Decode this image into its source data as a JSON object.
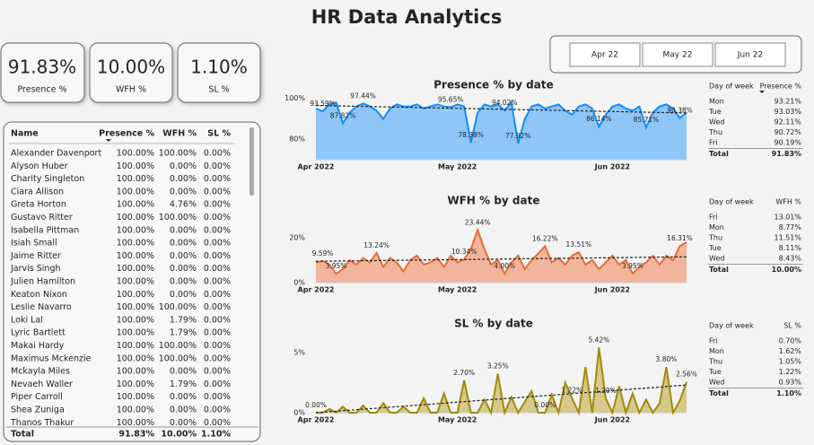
{
  "title": "HR Data Analytics",
  "kpis": [
    {
      "value": "91.83%",
      "label": "Presence %"
    },
    {
      "value": "10.00%",
      "label": "WFH %"
    },
    {
      "value": "1.10%",
      "label": "SL %"
    }
  ],
  "date_slicer": [
    "Apr 22",
    "May 22",
    "Jun 22"
  ],
  "employee_table": {
    "columns": [
      "Name",
      "Presence %",
      "WFH %",
      "SL %"
    ],
    "rows": [
      [
        "Alexander Davenport",
        "100.00%",
        "100.00%",
        "0.00%"
      ],
      [
        "Alyson Huber",
        "100.00%",
        "0.00%",
        "0.00%"
      ],
      [
        "Charity Singleton",
        "100.00%",
        "0.00%",
        "0.00%"
      ],
      [
        "Ciara Allison",
        "100.00%",
        "0.00%",
        "0.00%"
      ],
      [
        "Greta Horton",
        "100.00%",
        "4.76%",
        "0.00%"
      ],
      [
        "Gustavo Ritter",
        "100.00%",
        "100.00%",
        "0.00%"
      ],
      [
        "Isabella Pittman",
        "100.00%",
        "0.00%",
        "0.00%"
      ],
      [
        "Isiah Small",
        "100.00%",
        "0.00%",
        "0.00%"
      ],
      [
        "Jaime Ritter",
        "100.00%",
        "0.00%",
        "0.00%"
      ],
      [
        "Jarvis Singh",
        "100.00%",
        "0.00%",
        "0.00%"
      ],
      [
        "Julien Hamilton",
        "100.00%",
        "0.00%",
        "0.00%"
      ],
      [
        "Keaton Nixon",
        "100.00%",
        "0.00%",
        "0.00%"
      ],
      [
        "Leslie Navarro",
        "100.00%",
        "100.00%",
        "0.00%"
      ],
      [
        "Loki Lal",
        "100.00%",
        "1.79%",
        "0.00%"
      ],
      [
        "Lyric Bartlett",
        "100.00%",
        "1.79%",
        "0.00%"
      ],
      [
        "Makai Hardy",
        "100.00%",
        "100.00%",
        "0.00%"
      ],
      [
        "Maximus Mckenzie",
        "100.00%",
        "100.00%",
        "0.00%"
      ],
      [
        "Mckayla Miles",
        "100.00%",
        "0.00%",
        "0.00%"
      ],
      [
        "Nevaeh Waller",
        "100.00%",
        "1.79%",
        "0.00%"
      ],
      [
        "Piper Carroll",
        "100.00%",
        "0.00%",
        "0.00%"
      ],
      [
        "Shea Zuniga",
        "100.00%",
        "0.00%",
        "0.00%"
      ],
      [
        "Thanos Thakur",
        "100.00%",
        "0.00%",
        "0.00%"
      ]
    ],
    "total": [
      "Total",
      "91.83%",
      "10.00%",
      "1.10%"
    ]
  },
  "chart_data": [
    {
      "type": "line",
      "title": "Presence % by date",
      "categories": [
        "Apr 2022",
        null,
        null,
        null,
        null,
        null,
        null,
        null,
        null,
        null,
        null,
        null,
        null,
        null,
        null,
        null,
        null,
        null,
        null,
        null,
        null,
        "May 2022",
        null,
        null,
        null,
        null,
        null,
        null,
        null,
        null,
        null,
        null,
        null,
        null,
        null,
        null,
        null,
        null,
        null,
        null,
        null,
        null,
        null,
        null,
        "Jun 2022",
        null,
        null,
        null,
        null,
        null,
        null,
        null,
        null,
        null,
        null,
        null
      ],
      "values": [
        95,
        93.59,
        97,
        98,
        87.82,
        93,
        96,
        97.44,
        96,
        94,
        90,
        95,
        97,
        96,
        96,
        97,
        95,
        96,
        97,
        96,
        95.65,
        97,
        96,
        78.38,
        93,
        97,
        96,
        97,
        94.02,
        98,
        77.92,
        90,
        96,
        97,
        95,
        96,
        97,
        94,
        92,
        96,
        97,
        95,
        86.14,
        92,
        96,
        97,
        95,
        94,
        96,
        85.71,
        93,
        96,
        97,
        95,
        90.38,
        93
      ],
      "value_labels": [
        null,
        "93.59%",
        null,
        null,
        "87.82%",
        null,
        null,
        "97.44%",
        null,
        null,
        null,
        null,
        null,
        null,
        null,
        null,
        null,
        null,
        null,
        null,
        "95.65%",
        null,
        null,
        "78.38%",
        null,
        null,
        null,
        null,
        "94.02%",
        null,
        "77.92%",
        null,
        null,
        null,
        null,
        null,
        null,
        null,
        null,
        null,
        null,
        null,
        "86.14%",
        null,
        null,
        null,
        null,
        null,
        null,
        "85.71%",
        null,
        null,
        null,
        null,
        "90.38%",
        null
      ],
      "trendline": [
        96.5,
        92.8
      ],
      "color": "#118dff",
      "fill_color": "#8fc6f7",
      "ylim": [
        70,
        102
      ],
      "yticks": [
        {
          "value": 80,
          "label": "80%"
        },
        {
          "value": 100,
          "label": "100%"
        }
      ],
      "grid": false
    },
    {
      "type": "line",
      "title": "WFH % by date",
      "categories": [
        "Apr 2022",
        null,
        null,
        null,
        null,
        null,
        null,
        null,
        null,
        null,
        null,
        null,
        null,
        null,
        null,
        null,
        null,
        null,
        null,
        null,
        null,
        "May 2022",
        null,
        null,
        null,
        null,
        null,
        null,
        null,
        null,
        null,
        null,
        null,
        null,
        null,
        null,
        null,
        null,
        null,
        null,
        null,
        null,
        null,
        null,
        "Jun 2022",
        null,
        null,
        null,
        null,
        null,
        null,
        null,
        null,
        null,
        null,
        null
      ],
      "values": [
        9,
        9.59,
        8,
        3.95,
        6,
        10,
        8,
        11,
        9,
        13.24,
        7,
        11,
        9,
        5,
        10,
        12,
        8,
        9,
        11,
        7,
        12,
        9,
        10.34,
        15,
        23.44,
        15,
        8,
        10,
        4,
        9,
        12,
        6,
        10,
        13,
        16.22,
        9,
        11,
        8,
        12,
        13.51,
        8,
        10,
        6,
        9,
        12,
        8,
        10,
        3.95,
        7,
        9,
        12,
        8,
        12,
        10,
        16.31,
        18
      ],
      "value_labels": [
        null,
        "9.59%",
        null,
        "3.95%",
        null,
        null,
        null,
        null,
        null,
        "13.24%",
        null,
        null,
        null,
        null,
        null,
        null,
        null,
        null,
        null,
        null,
        null,
        null,
        "10.34%",
        null,
        "23.44%",
        null,
        null,
        null,
        "4.00%",
        null,
        null,
        null,
        null,
        null,
        "16.22%",
        null,
        null,
        null,
        null,
        "13.51%",
        null,
        null,
        null,
        null,
        null,
        null,
        null,
        "3.95%",
        null,
        null,
        null,
        null,
        null,
        null,
        "16.31%",
        null
      ],
      "trendline": [
        9.5,
        11.5
      ],
      "color": "#e66c37",
      "fill_color": "#f2b59c",
      "ylim": [
        0,
        26
      ],
      "yticks": [
        {
          "value": 0,
          "label": "0%"
        },
        {
          "value": 20,
          "label": "20%"
        }
      ],
      "grid": false
    },
    {
      "type": "line",
      "title": "SL % by date",
      "categories": [
        "Apr 2022",
        null,
        null,
        null,
        null,
        null,
        null,
        null,
        null,
        null,
        null,
        null,
        null,
        null,
        null,
        null,
        null,
        null,
        null,
        null,
        null,
        "May 2022",
        null,
        null,
        null,
        null,
        null,
        null,
        null,
        null,
        null,
        null,
        null,
        null,
        null,
        null,
        null,
        null,
        null,
        null,
        null,
        null,
        null,
        null,
        "Jun 2022",
        null,
        null,
        null,
        null,
        null,
        null,
        null,
        null,
        null,
        null,
        null
      ],
      "values": [
        0,
        0,
        0.3,
        0,
        0.5,
        0,
        0,
        0.6,
        0,
        0,
        0.8,
        0,
        0,
        0.5,
        0,
        0,
        1.2,
        0,
        0,
        1.6,
        0,
        0,
        2.7,
        0,
        0,
        1.1,
        0,
        3.25,
        0,
        1.3,
        0,
        0.9,
        1.8,
        0,
        0,
        1.5,
        0,
        2.5,
        1.22,
        0,
        3.8,
        0,
        5.42,
        1.2,
        0,
        2.2,
        0,
        1.6,
        0,
        1.1,
        0,
        0.8,
        3.8,
        0,
        1,
        2.56
      ],
      "value_labels": [
        "0.00%",
        null,
        null,
        null,
        null,
        null,
        null,
        null,
        null,
        null,
        null,
        null,
        null,
        null,
        null,
        null,
        null,
        null,
        null,
        null,
        null,
        null,
        "2.70%",
        null,
        null,
        null,
        null,
        "3.25%",
        null,
        null,
        null,
        null,
        null,
        null,
        "0.00%",
        null,
        null,
        null,
        "1.22%",
        null,
        null,
        null,
        "5.42%",
        "1.20%",
        null,
        null,
        null,
        null,
        null,
        null,
        null,
        null,
        "3.80%",
        null,
        null,
        "2.56%"
      ],
      "trendline": [
        0,
        2.3
      ],
      "color": "#a08a0a",
      "fill_color": "#d6c98a",
      "ylim": [
        0,
        5.6
      ],
      "yticks": [
        {
          "value": 0,
          "label": "0%"
        },
        {
          "value": 5,
          "label": "5%"
        }
      ],
      "grid": false
    }
  ],
  "day_tables": [
    {
      "columns": [
        "Day of week",
        "Presence %"
      ],
      "rows": [
        [
          "Mon",
          "93.21%"
        ],
        [
          "Tue",
          "93.03%"
        ],
        [
          "Wed",
          "92.11%"
        ],
        [
          "Thu",
          "90.72%"
        ],
        [
          "Fri",
          "90.19%"
        ]
      ],
      "total": [
        "Total",
        "91.83%"
      ]
    },
    {
      "columns": [
        "Day of week",
        "WFH %"
      ],
      "rows": [
        [
          "Fri",
          "13.01%"
        ],
        [
          "Mon",
          "8.77%"
        ],
        [
          "Thu",
          "11.51%"
        ],
        [
          "Tue",
          "8.11%"
        ],
        [
          "Wed",
          "8.43%"
        ]
      ],
      "total": [
        "Total",
        "10.00%"
      ]
    },
    {
      "columns": [
        "Day of week",
        "SL %"
      ],
      "rows": [
        [
          "Fri",
          "0.70%"
        ],
        [
          "Mon",
          "1.62%"
        ],
        [
          "Thu",
          "1.05%"
        ],
        [
          "Tue",
          "1.22%"
        ],
        [
          "Wed",
          "0.93%"
        ]
      ],
      "total": [
        "Total",
        "1.10%"
      ]
    }
  ]
}
